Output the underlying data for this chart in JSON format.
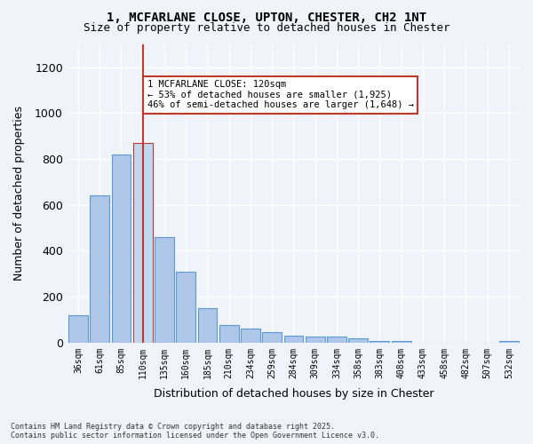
{
  "title1": "1, MCFARLANE CLOSE, UPTON, CHESTER, CH2 1NT",
  "title2": "Size of property relative to detached houses in Chester",
  "xlabel": "Distribution of detached houses by size in Chester",
  "ylabel": "Number of detached properties",
  "categories": [
    "36sqm",
    "61sqm",
    "85sqm",
    "110sqm",
    "135sqm",
    "160sqm",
    "185sqm",
    "210sqm",
    "234sqm",
    "259sqm",
    "284sqm",
    "309sqm",
    "334sqm",
    "358sqm",
    "383sqm",
    "408sqm",
    "433sqm",
    "458sqm",
    "482sqm",
    "507sqm",
    "532sqm"
  ],
  "values": [
    120,
    640,
    820,
    870,
    460,
    310,
    150,
    75,
    60,
    45,
    30,
    25,
    25,
    20,
    5,
    5,
    0,
    0,
    0,
    0,
    5
  ],
  "bar_color": "#aec6e8",
  "bar_edge_color": "#5b9bd5",
  "highlight_color": "#c0d8f0",
  "highlight_edge_color": "#c0392b",
  "highlight_index": 3,
  "vline_x": 3,
  "vline_color": "#c0392b",
  "annotation_text": "1 MCFARLANE CLOSE: 120sqm\n← 53% of detached houses are smaller (1,925)\n46% of semi-detached houses are larger (1,648) →",
  "annotation_box_color": "#ffffff",
  "annotation_box_edge": "#c0392b",
  "ylim": [
    0,
    1300
  ],
  "yticks": [
    0,
    200,
    400,
    600,
    800,
    1000,
    1200
  ],
  "footer": "Contains HM Land Registry data © Crown copyright and database right 2025.\nContains public sector information licensed under the Open Government Licence v3.0.",
  "bg_color": "#f0f4fa",
  "grid_color": "#ffffff"
}
